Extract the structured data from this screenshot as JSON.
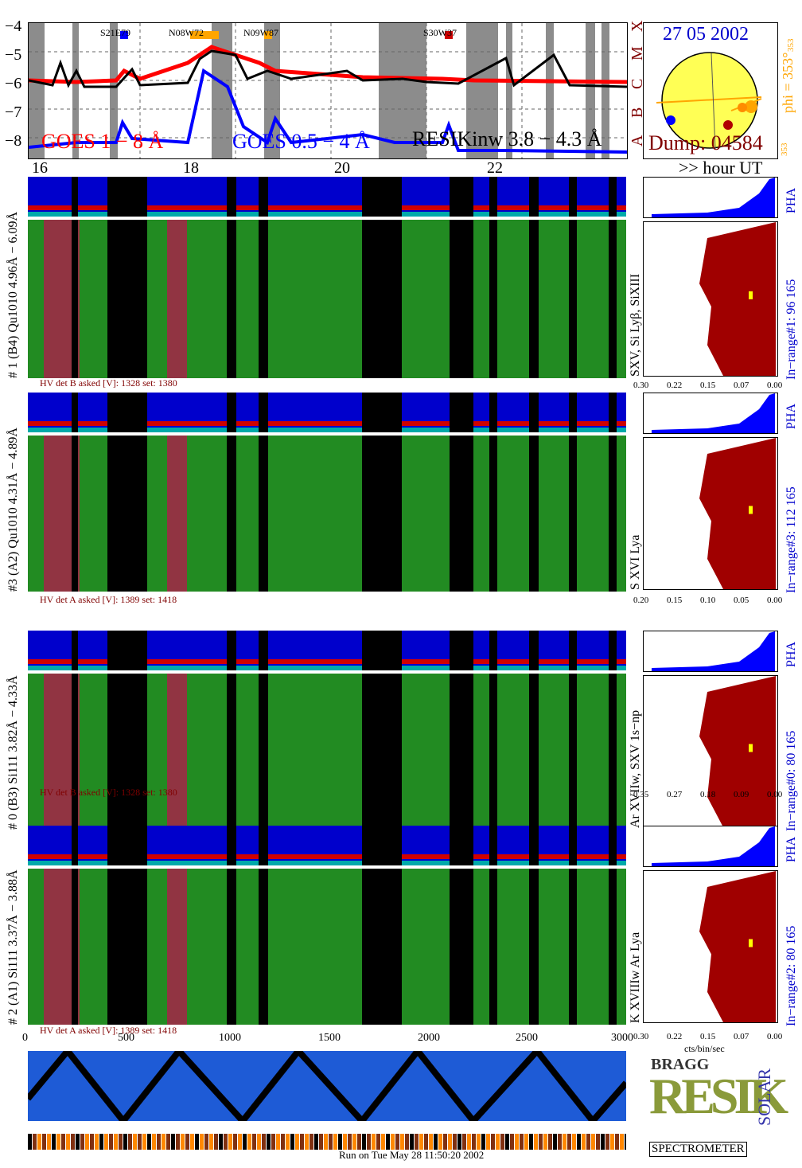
{
  "goes": {
    "y_ticks": [
      "−4",
      "−5",
      "−6",
      "−7",
      "−8"
    ],
    "class_labels": [
      "X",
      "M",
      "C",
      "B",
      "A"
    ],
    "x_ticks": [
      "16",
      "18",
      "20",
      "22"
    ],
    "legend": {
      "goes18": "GOES 1 − 8 Å",
      "goes054": "GOES 0.5 − 4 Å",
      "resik": "RESIKinw 3.8 − 4.3 Å"
    },
    "regions": [
      "S21E79",
      "N08W72",
      "N09W87",
      "S30W37"
    ],
    "hour_label": ">> hour UT"
  },
  "sun": {
    "date": "27 05 2002",
    "dump": "Dump: 04584",
    "phi": "phi = 353°",
    "phi_small": "353",
    "phi_small_bottom": "353"
  },
  "channels": [
    {
      "id": "ch1",
      "title": "# 1 (B4) Qu1010 4.96Å − 6.09Å",
      "lines": "SXV, Si Lyβ, SiXIII",
      "inrange": "In−range#1:  96 165",
      "hv": "HV det B asked [V]:  1328 set:  1380",
      "axis": [
        "0.30",
        "0.22",
        "0.15",
        "0.07",
        "0.00"
      ],
      "pha": "PHA"
    },
    {
      "id": "ch3",
      "title": "#3 (A2) Qu1010  4.31Å − 4.89Å",
      "lines": "S XVI Lya",
      "inrange": "In−range#3:  112 165",
      "hv": "HV det A asked [V]:  1389 set:  1418",
      "axis": [
        "0.20",
        "0.15",
        "0.10",
        "0.05",
        "0.00"
      ],
      "pha": "PHA"
    },
    {
      "id": "ch0",
      "title": "# 0 (B3) Si111  3.82Å − 4.33Å",
      "lines": "Ar XVIIw,  SXV 1s−np",
      "inrange": "In−range#0:   80 165",
      "hv": "HV det B asked [V]:  1328 set:  1380",
      "axis": [
        "0.35",
        "0.27",
        "0.18",
        "0.09",
        "0.00"
      ],
      "pha": "PHA"
    },
    {
      "id": "ch2",
      "title": "# 2 (A1) Si111  3.37Å − 3.88Å",
      "lines": "K XVIIIw  Ar Lya",
      "inrange": "In−range#2:   80 165",
      "hv": "HV det A asked [V]:  1389 set:  1418",
      "axis": [
        "0.30",
        "0.22",
        "0.15",
        "0.07",
        "0.00"
      ],
      "pha": "PHA"
    }
  ],
  "bottom": {
    "x_ticks": [
      "0",
      "500",
      "1000",
      "1500",
      "2000",
      "2500",
      "3000"
    ],
    "units": "cts/bin/sec",
    "run": "Run on Tue May 28 11:50:20 2002"
  },
  "logo": {
    "resik": "RESIK",
    "bragg": "BRAGG",
    "solar": "SOLAR",
    "spectrometer": "SPECTROMETER"
  },
  "colors": {
    "red": "#ff0000",
    "blue": "#0000ff",
    "darkred": "#b00000",
    "orange": "#ffa500",
    "green": "#00aa00",
    "navy": "#0000cc"
  }
}
